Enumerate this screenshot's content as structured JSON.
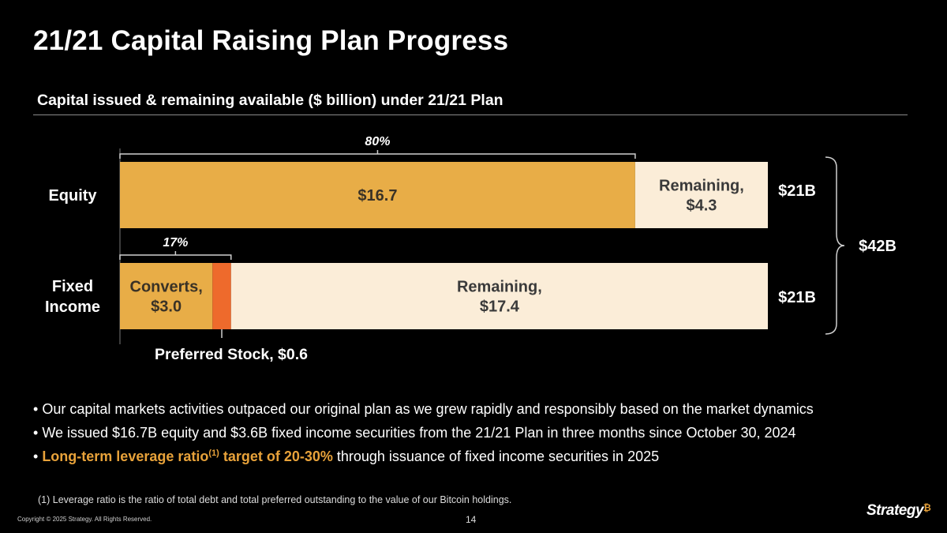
{
  "title": "21/21 Capital Raising Plan Progress",
  "subtitle": "Capital issued & remaining available ($ billion) under 21/21 Plan",
  "chart_data": {
    "type": "bar",
    "orientation": "horizontal",
    "stacked": true,
    "xlim": [
      0,
      21
    ],
    "categories": [
      {
        "key": "equity",
        "label_lines": [
          "Equity"
        ],
        "total_label": "$21B"
      },
      {
        "key": "fixed",
        "label_lines": [
          "Fixed",
          "Income"
        ],
        "total_label": "$21B"
      }
    ],
    "segments": {
      "equity": [
        {
          "name": "Equity issued",
          "value": 16.7,
          "label_lines": [
            "$16.7"
          ],
          "color": "#e8ad47"
        },
        {
          "name": "Remaining",
          "value": 4.3,
          "label_lines": [
            "Remaining,",
            "$4.3"
          ],
          "color": "#fbedd8"
        }
      ],
      "fixed": [
        {
          "name": "Converts",
          "value": 3.0,
          "label_lines": [
            "Converts,",
            "$3.0"
          ],
          "color": "#e8ad47"
        },
        {
          "name": "Preferred Stock",
          "value": 0.6,
          "label_lines": [],
          "color": "#ee6a2c"
        },
        {
          "name": "Remaining",
          "value": 17.4,
          "label_lines": [
            "Remaining,",
            "$17.4"
          ],
          "color": "#fbedd8"
        }
      ]
    },
    "annotations": {
      "equity_percent": {
        "label": "80%",
        "value": 16.7
      },
      "fixed_percent": {
        "label": "17%",
        "value": 3.6
      },
      "preferred_callout": "Preferred Stock, $0.6",
      "combined_total": "$42B"
    },
    "grid": false,
    "legend": "none"
  },
  "bullets": [
    {
      "parts": [
        {
          "text": "Our capital markets activities outpaced our original plan as we grew rapidly and responsibly based on the market dynamics"
        }
      ]
    },
    {
      "parts": [
        {
          "text": "We issued $16.7B equity and $3.6B fixed income securities from the 21/21 Plan in three months since October 30, 2024"
        }
      ]
    },
    {
      "parts": [
        {
          "text": "Long-term leverage ratio",
          "hl": true
        },
        {
          "text": "(1)",
          "hl": true,
          "sup": true
        },
        {
          "text": " target of 20-30%",
          "hl": true
        },
        {
          "text": " through issuance of fixed income securities in 2025"
        }
      ]
    }
  ],
  "footnote": "(1) Leverage ratio is the ratio of total debt and total preferred outstanding to the value of our Bitcoin holdings.",
  "copyright": "Copyright © 2025 Strategy. All Rights Reserved.",
  "page_number": "14",
  "logo": {
    "text": "Strategy",
    "mark": "₿"
  },
  "colors": {
    "accent": "#e8a23a",
    "issued": "#e8ad47",
    "preferred": "#ee6a2c",
    "remaining": "#fbedd8"
  }
}
